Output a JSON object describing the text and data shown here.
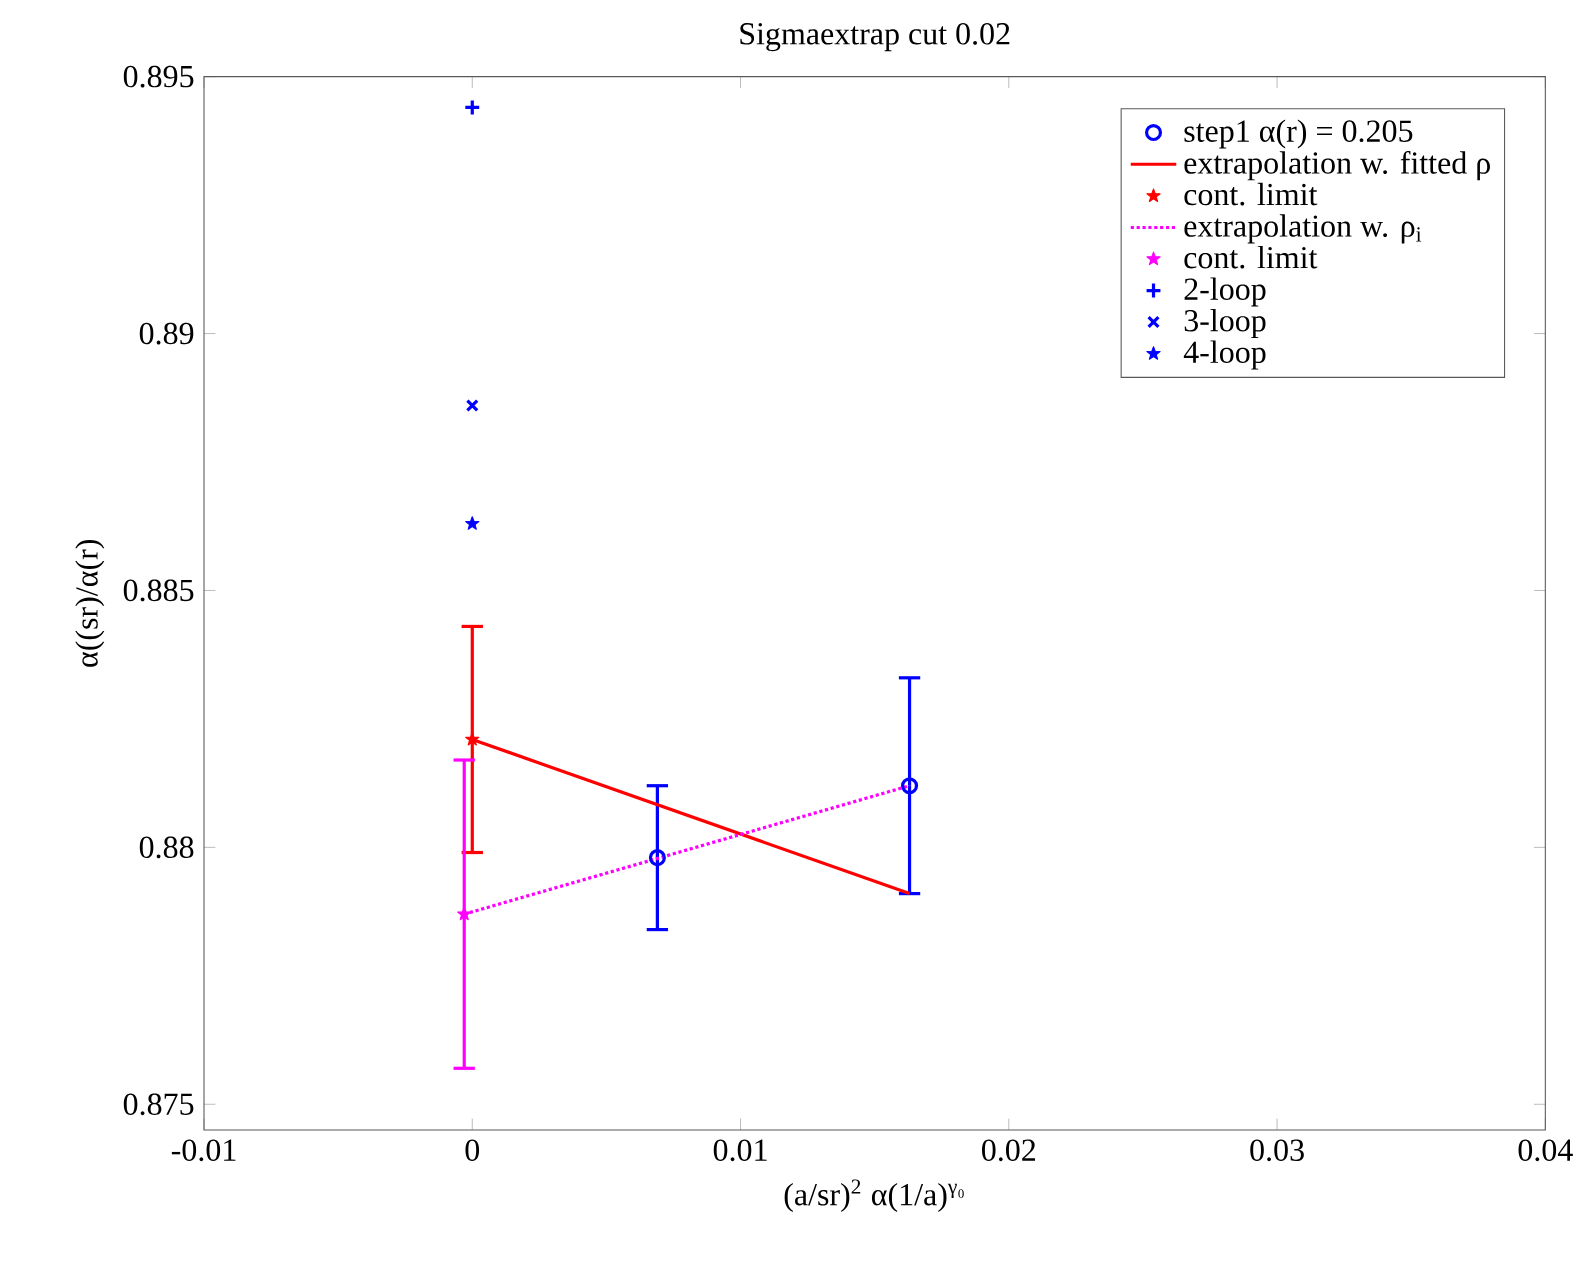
{
  "chart_data": {
    "type": "scatter",
    "title": "Sigmaextrap cut 0.02",
    "xlabel": "(a/sr)$^{2}$ α(1/a)$^{γ₀}$",
    "ylabel": "α((sr)/α(r)",
    "xlim": [
      -0.01,
      0.04
    ],
    "ylim": [
      0.8745,
      0.895
    ],
    "xticks": [
      {
        "value": -0.01,
        "label": "-0.01"
      },
      0,
      0.01,
      0.02,
      0.03,
      0.04
    ],
    "yticks": [
      0.875,
      0.88,
      0.885,
      0.89,
      0.895
    ],
    "grid": false,
    "legend": "top right",
    "series": [
      {
        "name": "step1 α(r) = 0.205",
        "marker": "circle",
        "color": "#0000ff",
        "x": [
          0.0069,
          0.0163
        ],
        "values": [
          0.8798,
          0.8812
        ],
        "errors": [
          0.0014,
          0.0021
        ]
      },
      {
        "name": "extrapolation w. fitted ρ",
        "type": "line",
        "marker": "none",
        "line_style": "solid",
        "color": "#ff0000",
        "x": [
          0,
          0.0163
        ],
        "values": [
          0.8821,
          0.8791
        ]
      },
      {
        "name": "cont. limit",
        "marker": "star",
        "color": "#ff0000",
        "x": [
          0
        ],
        "values": [
          0.8821
        ],
        "errors": [
          0.0022
        ]
      },
      {
        "name": "extrapolation w. ρ$_{i}$",
        "type": "line",
        "marker": "none",
        "line_style": "dotted",
        "color": "#ff00ff",
        "x": [
          -0.0003,
          0.0163
        ],
        "values": [
          0.8787,
          0.8812
        ]
      },
      {
        "name": "cont. limit",
        "marker": "star",
        "color": "#ff00ff",
        "x": [
          -0.0003
        ],
        "values": [
          0.8787
        ],
        "errors": [
          0.003
        ]
      },
      {
        "name": "2-loop",
        "marker": "plus",
        "color": "#0000ff",
        "x": [
          0
        ],
        "values": [
          0.8944
        ]
      },
      {
        "name": "3-loop",
        "marker": "cross",
        "color": "#0000ff",
        "x": [
          0
        ],
        "values": [
          0.8886
        ]
      },
      {
        "name": "4-loop",
        "marker": "star",
        "color": "#0000ff",
        "x": [
          0
        ],
        "values": [
          0.8863
        ]
      }
    ]
  }
}
